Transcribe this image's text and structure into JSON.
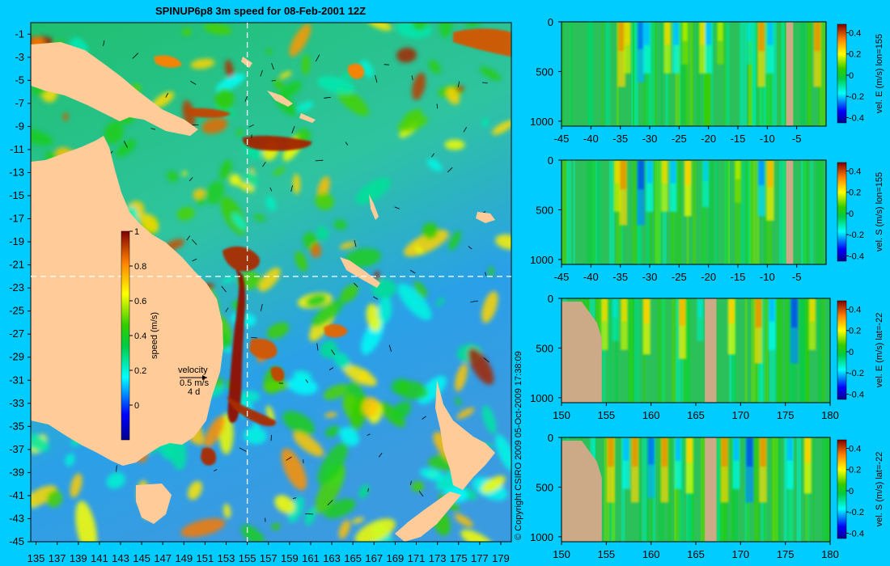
{
  "title": "SPINUP6p8 3m speed for 08-Feb-2001 12Z",
  "copyright": "© Copyright CSIRO 2009   05-Oct-2009 17:38:09",
  "colors": {
    "background": "#00ccff",
    "land_map": "#ffcc99",
    "land_section": "#ccaa88",
    "crosshair": "#ffffff"
  },
  "chart_data": [
    {
      "type": "heatmap",
      "name": "map",
      "title": "SPINUP6p8 3m speed for 08-Feb-2001 12Z",
      "x_ticks": [
        "135",
        "137",
        "139",
        "141",
        "143",
        "145",
        "147",
        "149",
        "151",
        "153",
        "155",
        "157",
        "159",
        "161",
        "163",
        "165",
        "167",
        "169",
        "171",
        "173",
        "175",
        "177",
        "179"
      ],
      "y_ticks": [
        "-1",
        "-3",
        "-5",
        "-7",
        "-9",
        "-11",
        "-13",
        "-15",
        "-17",
        "-19",
        "-21",
        "-23",
        "-25",
        "-27",
        "-29",
        "-31",
        "-33",
        "-35",
        "-37",
        "-39",
        "-41",
        "-43",
        "-45"
      ],
      "xlim": [
        134.5,
        180
      ],
      "ylim": [
        -45,
        0
      ],
      "crosshair": {
        "lon": 155,
        "lat": -22
      },
      "colorbar": {
        "label": "speed (m/s)",
        "ticks": [
          "1",
          "0.8",
          "0.6",
          "0.4",
          "0.2",
          "0"
        ],
        "range": [
          -0.2,
          1
        ]
      },
      "velocity_key": {
        "title": "velocity",
        "speed": "0.5 m/s",
        "interval": "4 d"
      }
    },
    {
      "type": "heatmap",
      "name": "section-1",
      "x_ticks": [
        "-45",
        "-40",
        "-35",
        "-30",
        "-25",
        "-20",
        "-15",
        "-10",
        "-5"
      ],
      "y_ticks": [
        "0",
        "500",
        "1000"
      ],
      "xlim": [
        -45,
        0
      ],
      "ylim": [
        1050,
        0
      ],
      "colorbar": {
        "ticks": [
          "0.4",
          "0.2",
          "0",
          "-0.2",
          "-0.4"
        ],
        "label": "vel. E (m/s) lon=155",
        "range": [
          -0.45,
          0.48
        ]
      },
      "features": [
        {
          "x": -34.8,
          "v": 0.45
        },
        {
          "x": -33.8,
          "v": 0.3
        },
        {
          "x": -31.5,
          "v": -0.4
        },
        {
          "x": -30.5,
          "v": -0.3
        },
        {
          "x": -27,
          "v": 0.3
        },
        {
          "x": -25.5,
          "v": -0.3
        },
        {
          "x": -24,
          "v": 0.2
        },
        {
          "x": -21,
          "v": 0.3
        },
        {
          "x": -20,
          "v": -0.3
        },
        {
          "x": -18,
          "v": 0.2
        },
        {
          "x": -13,
          "v": -0.2
        },
        {
          "x": -11,
          "v": 0.45
        },
        {
          "x": -9.5,
          "v": -0.3
        },
        {
          "x": -1.5,
          "v": 0.45
        }
      ]
    },
    {
      "type": "heatmap",
      "name": "section-2",
      "x_ticks": [
        "-45",
        "-40",
        "-35",
        "-30",
        "-25",
        "-20",
        "-15",
        "-10",
        "-5"
      ],
      "y_ticks": [
        "0",
        "500",
        "1000"
      ],
      "xlim": [
        -45,
        0
      ],
      "ylim": [
        1050,
        0
      ],
      "colorbar": {
        "ticks": [
          "0.4",
          "0.2",
          "0",
          "-0.2",
          "-0.4"
        ],
        "label": "vel. S (m/s) lon=155",
        "range": [
          -0.45,
          0.48
        ]
      },
      "features": [
        {
          "x": -35.5,
          "v": 0.3
        },
        {
          "x": -34.5,
          "v": 0.45
        },
        {
          "x": -31.5,
          "v": -0.45
        },
        {
          "x": -30,
          "v": -0.3
        },
        {
          "x": -27.5,
          "v": 0.3
        },
        {
          "x": -26,
          "v": -0.3
        },
        {
          "x": -23.5,
          "v": 0.35
        },
        {
          "x": -20.5,
          "v": -0.25
        },
        {
          "x": -15,
          "v": 0.2
        },
        {
          "x": -11,
          "v": -0.35
        },
        {
          "x": -9.5,
          "v": 0.4
        }
      ]
    },
    {
      "type": "heatmap",
      "name": "section-3",
      "x_ticks": [
        "150",
        "155",
        "160",
        "165",
        "170",
        "175",
        "180"
      ],
      "y_ticks": [
        "0",
        "500",
        "1000"
      ],
      "xlim": [
        150,
        180
      ],
      "ylim": [
        1050,
        0
      ],
      "colorbar": {
        "ticks": [
          "0.4",
          "0.2",
          "0",
          "-0.2",
          "-0.4"
        ],
        "label": "vel. E (m/s) lat=-22",
        "range": [
          -0.45,
          0.48
        ]
      },
      "features": [
        {
          "x": 154.8,
          "v": 0.3
        },
        {
          "x": 156,
          "v": -0.2
        },
        {
          "x": 157,
          "v": 0.3
        },
        {
          "x": 159.5,
          "v": 0.35
        },
        {
          "x": 163.5,
          "v": 0.4
        },
        {
          "x": 165.5,
          "v": -0.2
        },
        {
          "x": 169,
          "v": 0.35
        },
        {
          "x": 172,
          "v": 0.45
        },
        {
          "x": 173.5,
          "v": -0.3
        },
        {
          "x": 176,
          "v": -0.45
        },
        {
          "x": 178,
          "v": 0.3
        }
      ]
    },
    {
      "type": "heatmap",
      "name": "section-4",
      "x_ticks": [
        "150",
        "155",
        "160",
        "165",
        "170",
        "175",
        "180"
      ],
      "y_ticks": [
        "0",
        "500",
        "1000"
      ],
      "xlim": [
        150,
        180
      ],
      "ylim": [
        1050,
        0
      ],
      "colorbar": {
        "ticks": [
          "0.4",
          "0.2",
          "0",
          "-0.2",
          "-0.4"
        ],
        "label": "vel. S (m/s) lat=-22",
        "range": [
          -0.45,
          0.48
        ]
      },
      "features": [
        {
          "x": 155.5,
          "v": 0.45
        },
        {
          "x": 157.2,
          "v": -0.3
        },
        {
          "x": 158.2,
          "v": 0.45
        },
        {
          "x": 160,
          "v": -0.4
        },
        {
          "x": 161.5,
          "v": 0.45
        },
        {
          "x": 163,
          "v": -0.3
        },
        {
          "x": 164.3,
          "v": 0.35
        },
        {
          "x": 168.2,
          "v": 0.45
        },
        {
          "x": 169.5,
          "v": -0.3
        },
        {
          "x": 171,
          "v": -0.45
        },
        {
          "x": 172.5,
          "v": 0.45
        },
        {
          "x": 175.5,
          "v": -0.3
        },
        {
          "x": 177.5,
          "v": 0.35
        }
      ]
    }
  ]
}
